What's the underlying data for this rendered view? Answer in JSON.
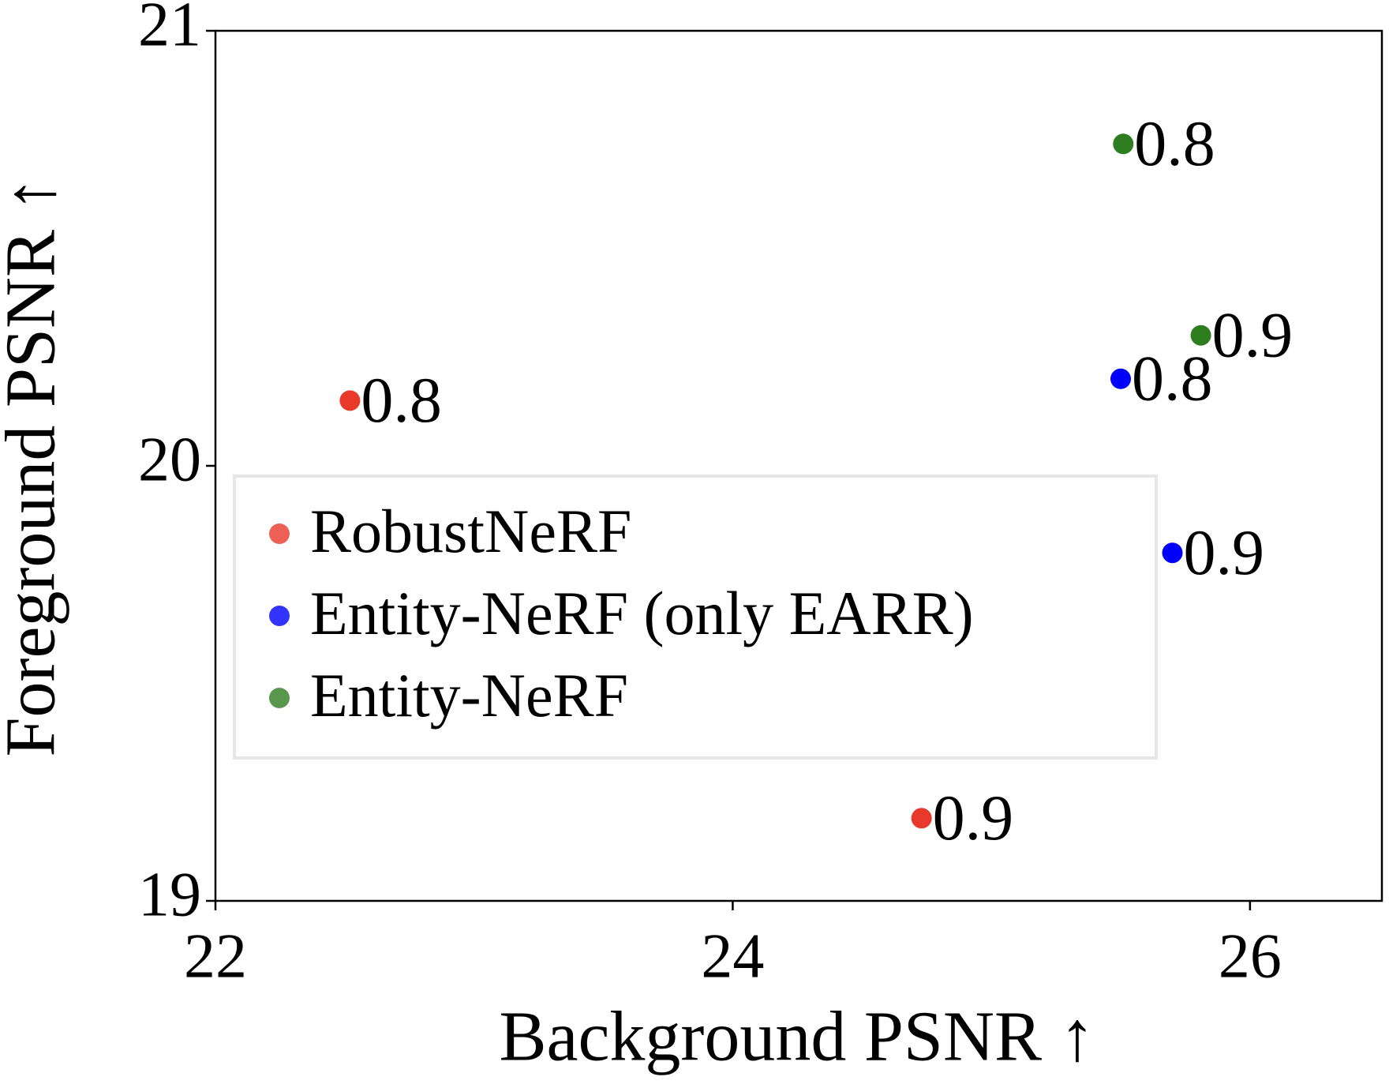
{
  "chart_data": {
    "type": "scatter",
    "xlabel": "Background PSNR ↑",
    "ylabel": "Foreground PSNR ↑",
    "xlim": [
      22,
      26.51
    ],
    "ylim": [
      19,
      21
    ],
    "xticks": [
      22,
      24,
      26
    ],
    "yticks": [
      19,
      20,
      21
    ],
    "grid": false,
    "legend": "center left",
    "series": [
      {
        "name": "RobustNeRF",
        "color": "#e8392b",
        "x": [
          22.52,
          24.73
        ],
        "values": [
          20.15,
          19.19
        ],
        "labels": [
          "0.8",
          "0.9"
        ]
      },
      {
        "name": "Entity-NeRF (only EARR)",
        "color": "#0000ff",
        "x": [
          25.5,
          25.7
        ],
        "values": [
          20.2,
          19.8
        ],
        "labels": [
          "0.8",
          "0.9"
        ]
      },
      {
        "name": "Entity-NeRF",
        "color": "#2e7d1f",
        "x": [
          25.51,
          25.81
        ],
        "values": [
          20.74,
          20.3
        ],
        "labels": [
          "0.8",
          "0.9"
        ]
      }
    ]
  }
}
